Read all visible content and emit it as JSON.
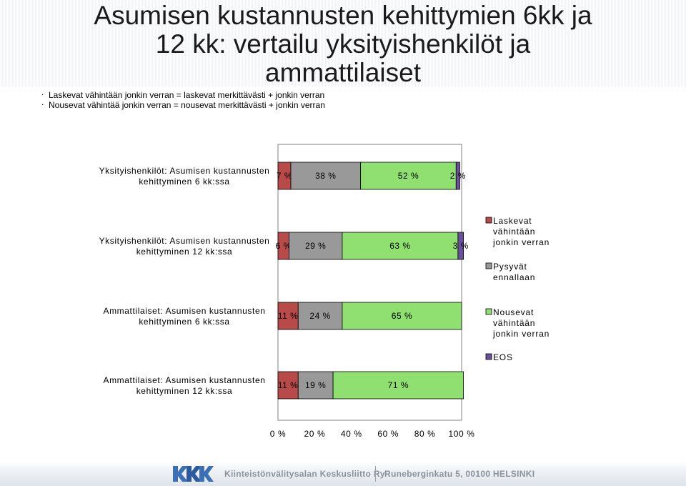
{
  "title": "Asumisen kustannusten kehittymien 6kk ja\n12 kk: vertailu yksityishenkilöt ja\nammattilaiset",
  "notes": [
    "Laskevat vähintään jonkin verran  =  laskevat merkittävästi + jonkin verran",
    "Nousevat vähintää jonkin verran = nousevat merkittävästi + jonkin verran"
  ],
  "footer": {
    "org": "Kiinteistönvälitysalan Keskusliitto Ry",
    "address": "Runeberginkatu 5, 00100 HELSINKI"
  },
  "colors": {
    "laskevat": "#b84a4a",
    "pysyvat": "#999999",
    "nousevat": "#8fe070",
    "eos": "#6a4f9c"
  },
  "chart_data": {
    "type": "bar",
    "orientation": "horizontal",
    "stacked": "percent",
    "categories": [
      "Yksityishenkilöt: Asumisen kustannusten kehittyminen 6 kk:ssa",
      "Yksityishenkilöt: Asumisen kustannusten kehittyminen 12 kk:ssa",
      "Ammattilaiset: Asumisen kustannusten kehittyminen 6 kk:ssa",
      "Ammattilaiset: Asumisen kustannusten kehittyminen 12 kk:ssa"
    ],
    "series": [
      {
        "name": "Laskevat vähintään jonkin verran",
        "values": [
          7,
          6,
          11,
          11
        ],
        "labels": [
          "7 %",
          "6 %",
          "11 %",
          "11 %"
        ]
      },
      {
        "name": "Pysyvät ennallaan",
        "values": [
          38,
          29,
          24,
          19
        ],
        "labels": [
          "38 %",
          "29 %",
          "24 %",
          "19 %"
        ]
      },
      {
        "name": "Nousevat vähintään jonkin verran",
        "values": [
          52,
          63,
          65,
          71
        ],
        "labels": [
          "52 %",
          "63 %",
          "65 %",
          "71 %"
        ]
      },
      {
        "name": "EOS",
        "values": [
          2,
          3,
          0,
          0
        ],
        "labels": [
          "2 %",
          "3 %",
          "",
          ""
        ]
      }
    ],
    "xlim": [
      0,
      100
    ],
    "xticks": [
      "0 %",
      "20 %",
      "40 %",
      "60 %",
      "80 %",
      "100 %"
    ],
    "legend_position": "right"
  }
}
